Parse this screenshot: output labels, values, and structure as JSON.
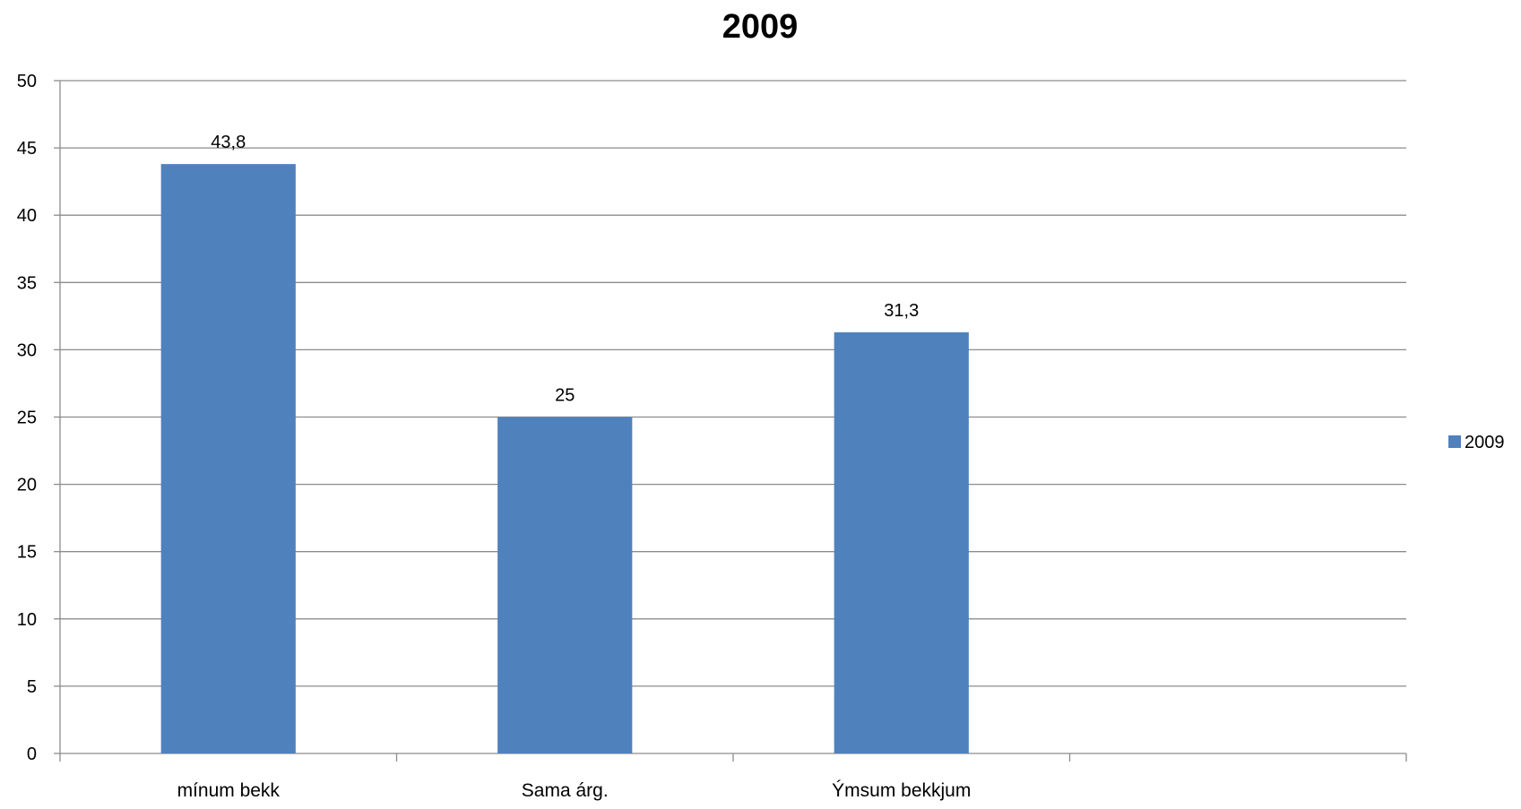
{
  "chart_data": {
    "type": "bar",
    "title": "2009",
    "xlabel": "",
    "ylabel": "",
    "categories": [
      "mínum bekk",
      "Sama árg.",
      "Ýmsum bekkjum",
      ""
    ],
    "series": [
      {
        "name": "2009",
        "values": [
          43.8,
          25,
          31.3,
          null
        ],
        "data_labels": [
          "43,8",
          "25",
          "31,3",
          ""
        ],
        "color": "#4F81BD"
      }
    ],
    "ylim": [
      0,
      50
    ],
    "yticks": [
      0,
      5,
      10,
      15,
      20,
      25,
      30,
      35,
      40,
      45,
      50
    ],
    "grid": true,
    "legend": "right",
    "colors": {
      "gridline": "#8C8C8C",
      "axis": "#8C8C8C"
    }
  }
}
